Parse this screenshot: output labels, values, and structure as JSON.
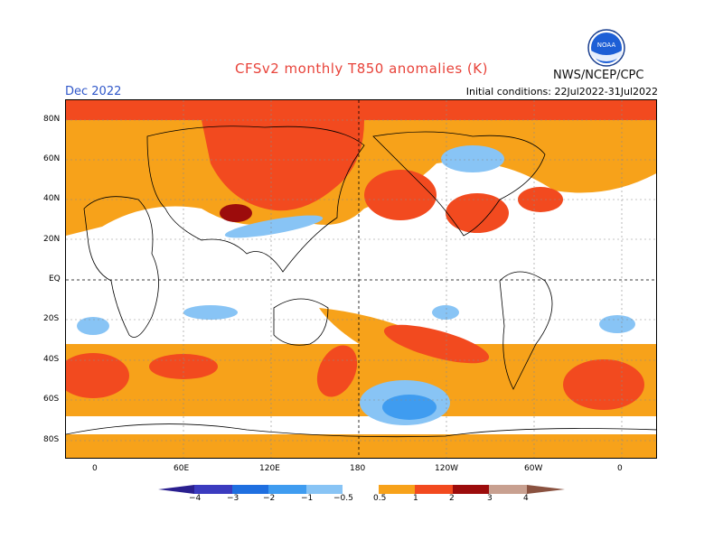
{
  "header": {
    "title": "CFSv2 monthly T850 anomalies (K)",
    "month": "Dec 2022",
    "agency": "NWS/NCEP/CPC",
    "initial_conditions": "Initial conditions: 22Jul2022-31Jul2022"
  },
  "logo": {
    "icon": "noaa-logo-icon",
    "text": "NOAA"
  },
  "map": {
    "lat_labels": [
      "80N",
      "60N",
      "40N",
      "20N",
      "EQ",
      "20S",
      "40S",
      "60S",
      "80S"
    ],
    "lon_labels": [
      "0",
      "60E",
      "120E",
      "180",
      "120W",
      "60W",
      "0"
    ]
  },
  "colorbar": {
    "labels": [
      "−4",
      "−3",
      "−2",
      "−1",
      "−0.5",
      "0.5",
      "1",
      "2",
      "3",
      "4"
    ],
    "colors": [
      "#2a1f8f",
      "#3b3bbf",
      "#1f6fe0",
      "#3f9cf0",
      "#88c4f5",
      "#ffffff",
      "#f7a21a",
      "#f24a1f",
      "#9c0c0c",
      "#c8a090",
      "#8a5240"
    ]
  },
  "colors": {
    "orange": "#f7a21a",
    "red": "#f24a1f",
    "darkred": "#9c0c0c",
    "lightblue": "#88c4f5",
    "blue": "#3f9cf0"
  }
}
